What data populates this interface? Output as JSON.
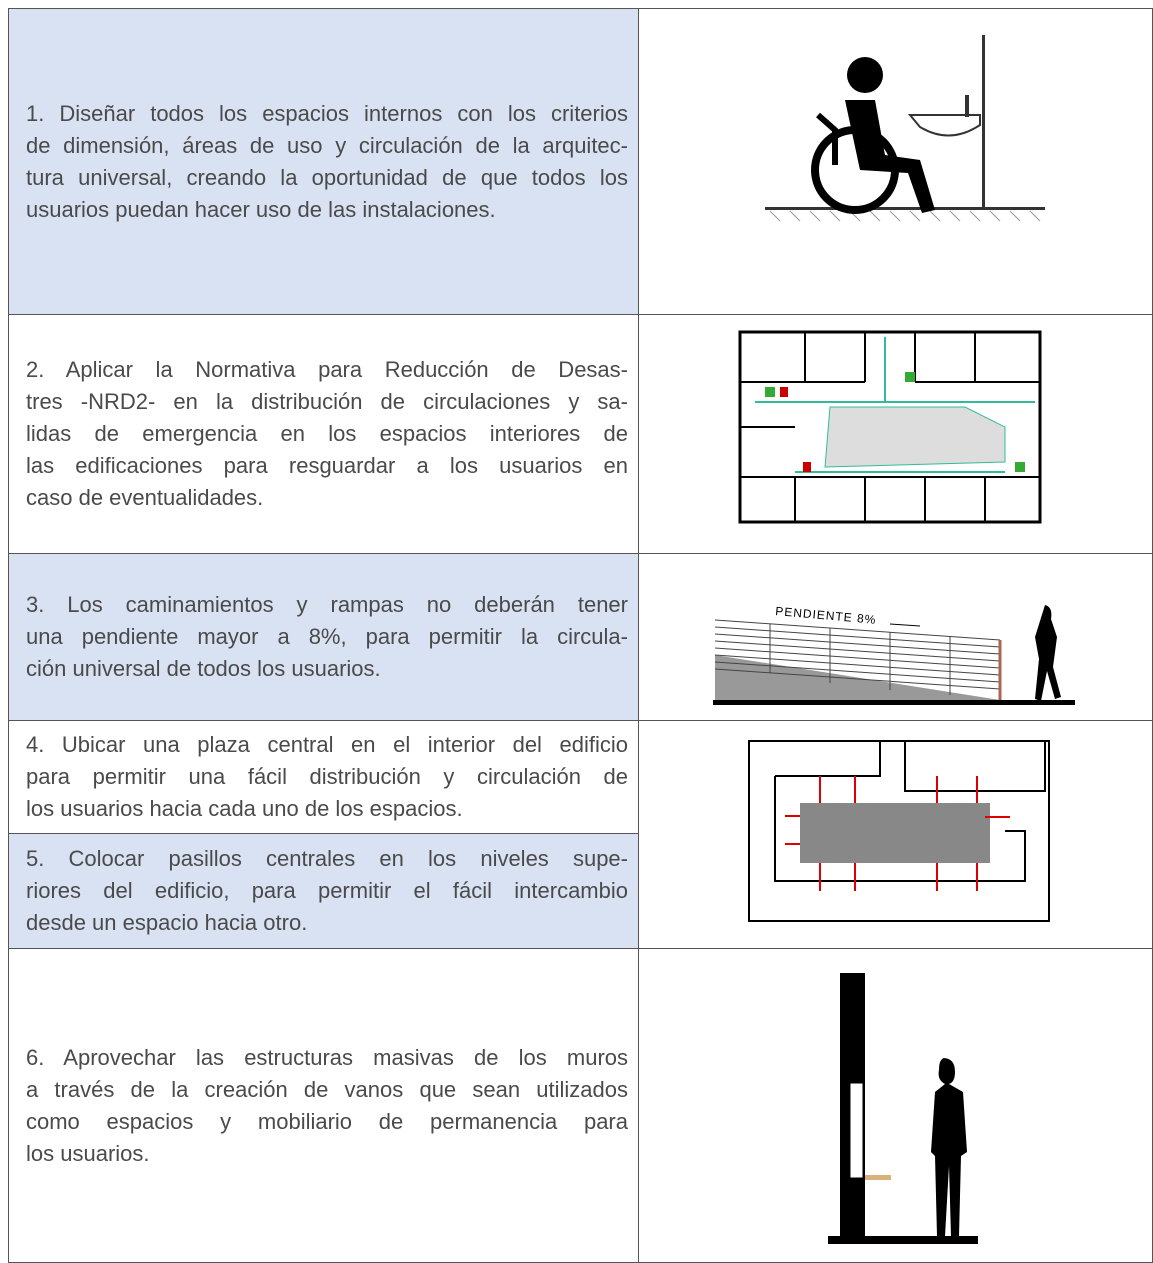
{
  "rows": [
    {
      "lines": [
        "1. Diseñar todos los espacios internos con los criterios",
        "de dimensión, áreas de uso y circulación de la arquitec-",
        "tura universal, creando la oportunidad de que todos los",
        "usuarios puedan hacer uso de las instalaciones."
      ]
    },
    {
      "lines": [
        "2. Aplicar la Normativa para Reducción de Desas-",
        "tres -NRD2- en la distribución de circulaciones y sa-",
        "lidas de emergencia en los espacios interiores de",
        "las edificaciones para resguardar a los usuarios en",
        "caso de eventualidades."
      ]
    },
    {
      "lines": [
        "3. Los caminamientos y rampas no deberán tener",
        "una pendiente mayor a 8%, para permitir la circula-",
        "ción universal de todos los usuarios."
      ]
    },
    {
      "lines": [
        "4. Ubicar una plaza central en el interior del edificio",
        "para permitir una fácil distribución y circulación de",
        "los usuarios hacia cada uno de los espacios."
      ]
    },
    {
      "lines": [
        "5. Colocar pasillos centrales en los niveles supe-",
        "riores del edificio, para permitir el fácil intercambio",
        "desde un espacio hacia otro."
      ]
    },
    {
      "lines": [
        "6. Aprovechar las estructuras masivas de los muros",
        "a través de la creación de vanos que sean utilizados",
        "como espacios y mobiliario de permanencia para",
        "los usuarios."
      ]
    }
  ],
  "illustrations": {
    "slope_label": "PENDIENTE 8%"
  }
}
